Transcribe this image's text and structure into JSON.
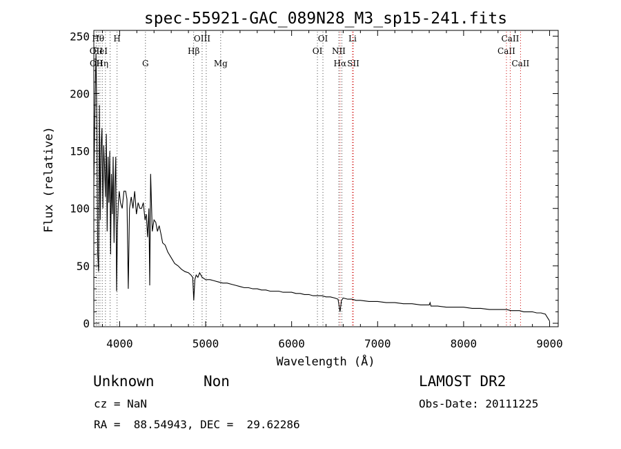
{
  "chart_data": {
    "type": "line",
    "title": "spec-55921-GAC_089N28_M3_sp15-241.fits",
    "xlabel": "Wavelength (Å)",
    "ylabel": "Flux (relative)",
    "xlim": [
      3700,
      9100
    ],
    "ylim": [
      -3,
      255
    ],
    "xticks": [
      4000,
      5000,
      6000,
      7000,
      8000,
      9000
    ],
    "yticks": [
      0,
      50,
      100,
      150,
      200,
      250
    ],
    "grid": false,
    "line_color": "#000000",
    "series": [
      {
        "x": [
          3700,
          3715,
          3725,
          3735,
          3745,
          3755,
          3765,
          3775,
          3785,
          3795,
          3805,
          3815,
          3825,
          3835,
          3845,
          3855,
          3865,
          3875,
          3885,
          3895,
          3905,
          3915,
          3925,
          3935,
          3945,
          3955,
          3965,
          3975,
          3985,
          3995,
          4010,
          4030,
          4050,
          4070,
          4085,
          4100,
          4115,
          4135,
          4155,
          4175,
          4195,
          4215,
          4235,
          4255,
          4275,
          4295,
          4310,
          4325,
          4340,
          4350,
          4360,
          4380,
          4400,
          4420,
          4440,
          4460,
          4480,
          4500,
          4530,
          4560,
          4600,
          4640,
          4680,
          4720,
          4760,
          4800,
          4830,
          4850,
          4862,
          4875,
          4890,
          4910,
          4930,
          4960,
          5000,
          5050,
          5100,
          5150,
          5200,
          5250,
          5300,
          5350,
          5400,
          5450,
          5500,
          5550,
          5600,
          5650,
          5700,
          5750,
          5800,
          5850,
          5900,
          5950,
          6000,
          6050,
          6100,
          6150,
          6200,
          6250,
          6300,
          6350,
          6400,
          6450,
          6500,
          6540,
          6563,
          6580,
          6600,
          6650,
          6700,
          6750,
          6800,
          6900,
          7000,
          7100,
          7200,
          7300,
          7400,
          7500,
          7600,
          7610,
          7620,
          7700,
          7800,
          7900,
          8000,
          8100,
          8200,
          8300,
          8400,
          8500,
          8550,
          8600,
          8650,
          8700,
          8750,
          8800,
          8850,
          8900,
          8950,
          9000
        ],
        "y": [
          120,
          200,
          235,
          175,
          60,
          45,
          190,
          90,
          155,
          170,
          100,
          155,
          135,
          110,
          165,
          80,
          145,
          105,
          150,
          60,
          130,
          95,
          145,
          70,
          120,
          145,
          28,
          85,
          105,
          115,
          105,
          100,
          115,
          115,
          108,
          30,
          100,
          110,
          100,
          115,
          95,
          105,
          100,
          100,
          105,
          90,
          95,
          75,
          100,
          33,
          130,
          80,
          90,
          88,
          80,
          85,
          78,
          70,
          68,
          62,
          57,
          52,
          50,
          47,
          45,
          44,
          42,
          40,
          20,
          38,
          42,
          40,
          44,
          40,
          38,
          38,
          37,
          36,
          35,
          35,
          34,
          33,
          32,
          31,
          31,
          30,
          30,
          29,
          29,
          28,
          28,
          28,
          27,
          27,
          27,
          26,
          26,
          25,
          25,
          24,
          24,
          24,
          23,
          23,
          22,
          21,
          10,
          20,
          22,
          21,
          21,
          20,
          20,
          19,
          19,
          18,
          18,
          17,
          17,
          16,
          16,
          18,
          15,
          15,
          14,
          14,
          14,
          13,
          13,
          12,
          12,
          12,
          11,
          11,
          11,
          10,
          10,
          10,
          9,
          9,
          8,
          2
        ]
      }
    ],
    "line_markers": [
      {
        "x": 3727,
        "label": "OII",
        "row": 1,
        "color": "#444444"
      },
      {
        "x": 3729,
        "label": "OII",
        "row": 2,
        "color": "#444444"
      },
      {
        "x": 3750,
        "label": "Hθ",
        "row": 0,
        "color": "#444444"
      },
      {
        "x": 3771,
        "label": "HeI",
        "row": 1,
        "color": "#444444"
      },
      {
        "x": 3798,
        "label": "Hη",
        "row": 2,
        "color": "#444444"
      },
      {
        "x": 3835,
        "label": "",
        "row": 0,
        "color": "#444444"
      },
      {
        "x": 3889,
        "label": "",
        "row": 0,
        "color": "#444444"
      },
      {
        "x": 3970,
        "label": "H",
        "row": 0,
        "color": "#444444"
      },
      {
        "x": 4300,
        "label": "G",
        "row": 2,
        "color": "#444444"
      },
      {
        "x": 4861,
        "label": "Hβ",
        "row": 1,
        "color": "#444444"
      },
      {
        "x": 4959,
        "label": "OIII",
        "row": 0,
        "color": "#444444"
      },
      {
        "x": 5007,
        "label": "",
        "row": 0,
        "color": "#444444"
      },
      {
        "x": 5175,
        "label": "Mg",
        "row": 2,
        "color": "#444444"
      },
      {
        "x": 6300,
        "label": "OI",
        "row": 1,
        "color": "#444444"
      },
      {
        "x": 6364,
        "label": "OI",
        "row": 0,
        "color": "#444444"
      },
      {
        "x": 6548,
        "label": "NII",
        "row": 1,
        "color": "#444444"
      },
      {
        "x": 6563,
        "label": "Hα",
        "row": 2,
        "color": "#cc0000"
      },
      {
        "x": 6584,
        "label": "",
        "row": 1,
        "color": "#444444"
      },
      {
        "x": 6708,
        "label": "Li",
        "row": 0,
        "color": "#cc0000"
      },
      {
        "x": 6717,
        "label": "SII",
        "row": 2,
        "color": "#cc0000"
      },
      {
        "x": 8498,
        "label": "CaII",
        "row": 1,
        "color": "#cc0000"
      },
      {
        "x": 8542,
        "label": "CaII",
        "row": 0,
        "color": "#cc0000"
      },
      {
        "x": 8662,
        "label": "CaII",
        "row": 2,
        "color": "#cc0000"
      }
    ]
  },
  "info": {
    "class": "Unknown",
    "subclass": "Non",
    "survey": "LAMOST DR2",
    "cz": "cz = NaN",
    "obs_date": "Obs-Date: 20111225",
    "radec": "RA =  88.54943, DEC =  29.62286"
  }
}
